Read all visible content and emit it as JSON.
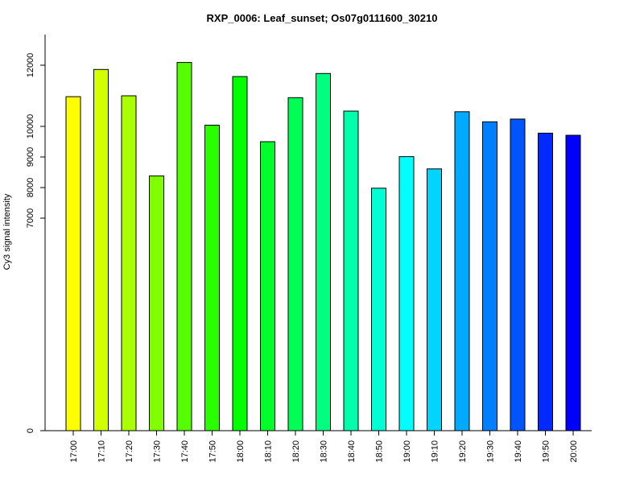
{
  "chart_data": {
    "type": "bar",
    "title": "RXP_0006: Leaf_sunset; Os07g0111600_30210",
    "xlabel": "",
    "ylabel": "Cy3 signal intensity",
    "y_axis_scale": "nonlinear (compressed below 7000)",
    "y_ticks": [
      0,
      7000,
      8000,
      9000,
      10000,
      12000
    ],
    "ylim": [
      0,
      12900
    ],
    "categories": [
      "17:00",
      "17:10",
      "17:20",
      "17:30",
      "17:40",
      "17:50",
      "18:00",
      "18:10",
      "18:20",
      "18:30",
      "18:40",
      "18:50",
      "19:00",
      "19:10",
      "19:20",
      "19:30",
      "19:40",
      "19:50",
      "20:00"
    ],
    "values": [
      10970,
      11860,
      11000,
      8380,
      12090,
      10040,
      11630,
      9500,
      10940,
      11730,
      10500,
      7980,
      9010,
      8610,
      10480,
      10150,
      10240,
      9780,
      9710
    ],
    "colors": [
      "#FFFF00",
      "#D4FF00",
      "#AAFF00",
      "#80FF00",
      "#55FF00",
      "#2AFF00",
      "#00FF00",
      "#00FF2A",
      "#00FF55",
      "#00FF80",
      "#00FFAA",
      "#00FFD4",
      "#00FFFF",
      "#00D4FF",
      "#00AAFF",
      "#0080FF",
      "#0055FF",
      "#002AFF",
      "#0000FF"
    ],
    "grid": false,
    "legend": "none"
  }
}
